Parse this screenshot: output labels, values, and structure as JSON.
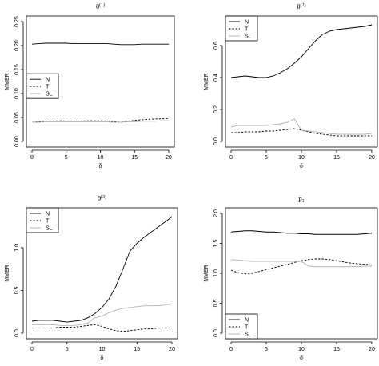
{
  "chart_data": [
    {
      "type": "line",
      "title": "θ",
      "title_sup": "(1)",
      "xlabel": "δ",
      "ylabel": "MMER",
      "xlim": [
        0,
        20
      ],
      "ylim": [
        0,
        0.25
      ],
      "xticks": [
        0,
        5,
        10,
        15,
        20
      ],
      "yticks": [
        0.0,
        0.05,
        0.1,
        0.15,
        0.2,
        0.25
      ],
      "ytick_labels": [
        "0.00",
        "0.05",
        "0.10",
        "0.15",
        "0.20",
        "0.25"
      ],
      "legend_position": "left",
      "x": [
        0,
        1,
        2,
        3,
        4,
        5,
        6,
        7,
        8,
        9,
        10,
        11,
        12,
        13,
        14,
        15,
        16,
        17,
        18,
        19,
        20
      ],
      "series": [
        {
          "name": "N",
          "style": "solid",
          "color": "#000000",
          "values": [
            0.203,
            0.204,
            0.205,
            0.205,
            0.205,
            0.205,
            0.204,
            0.204,
            0.204,
            0.204,
            0.204,
            0.204,
            0.203,
            0.202,
            0.202,
            0.202,
            0.203,
            0.203,
            0.203,
            0.203,
            0.203
          ]
        },
        {
          "name": "T",
          "style": "dashed",
          "color": "#000000",
          "values": [
            0.04,
            0.041,
            0.042,
            0.042,
            0.043,
            0.042,
            0.042,
            0.042,
            0.043,
            0.043,
            0.043,
            0.042,
            0.041,
            0.04,
            0.042,
            0.044,
            0.045,
            0.046,
            0.047,
            0.047,
            0.048
          ]
        },
        {
          "name": "SL",
          "style": "solid",
          "color": "#b3b3b3",
          "values": [
            0.04,
            0.04,
            0.041,
            0.041,
            0.041,
            0.041,
            0.041,
            0.041,
            0.041,
            0.041,
            0.041,
            0.041,
            0.04,
            0.04,
            0.041,
            0.041,
            0.042,
            0.042,
            0.042,
            0.043,
            0.043
          ]
        }
      ]
    },
    {
      "type": "line",
      "title": "θ",
      "title_sup": "(2)",
      "xlabel": "δ",
      "ylabel": "MMER",
      "xlim": [
        0,
        20
      ],
      "ylim": [
        0,
        0.75
      ],
      "xticks": [
        0,
        5,
        10,
        15,
        20
      ],
      "yticks": [
        0.0,
        0.2,
        0.4,
        0.6
      ],
      "ytick_labels": [
        "0.0",
        "0.2",
        "0.4",
        "0.6"
      ],
      "legend_position": "top-left",
      "x": [
        0,
        1,
        2,
        3,
        4,
        5,
        6,
        7,
        8,
        9,
        10,
        11,
        12,
        13,
        14,
        15,
        16,
        17,
        18,
        19,
        20
      ],
      "series": [
        {
          "name": "N",
          "style": "solid",
          "color": "#000000",
          "values": [
            0.4,
            0.405,
            0.41,
            0.405,
            0.4,
            0.4,
            0.41,
            0.43,
            0.455,
            0.49,
            0.53,
            0.58,
            0.63,
            0.67,
            0.69,
            0.7,
            0.705,
            0.71,
            0.715,
            0.72,
            0.73
          ]
        },
        {
          "name": "T",
          "style": "dashed",
          "color": "#000000",
          "values": [
            0.055,
            0.055,
            0.06,
            0.06,
            0.06,
            0.065,
            0.065,
            0.07,
            0.075,
            0.08,
            0.07,
            0.06,
            0.05,
            0.045,
            0.04,
            0.035,
            0.035,
            0.035,
            0.035,
            0.035,
            0.035
          ]
        },
        {
          "name": "SL",
          "style": "solid",
          "color": "#b3b3b3",
          "values": [
            0.09,
            0.1,
            0.1,
            0.1,
            0.1,
            0.1,
            0.105,
            0.11,
            0.12,
            0.14,
            0.07,
            0.065,
            0.06,
            0.055,
            0.05,
            0.045,
            0.045,
            0.045,
            0.045,
            0.045,
            0.05
          ]
        }
      ]
    },
    {
      "type": "line",
      "title": "θ",
      "title_sup": "(3)",
      "xlabel": "δ",
      "ylabel": "MMER",
      "xlim": [
        0,
        20
      ],
      "ylim": [
        0,
        1.4
      ],
      "xticks": [
        0,
        5,
        10,
        15,
        20
      ],
      "yticks": [
        0.0,
        0.5,
        1.0
      ],
      "ytick_labels": [
        "0.0",
        "0.5",
        "1.0"
      ],
      "legend_position": "top-left",
      "x": [
        0,
        1,
        2,
        3,
        4,
        5,
        6,
        7,
        8,
        9,
        10,
        11,
        12,
        13,
        14,
        15,
        16,
        17,
        18,
        19,
        20
      ],
      "series": [
        {
          "name": "N",
          "style": "solid",
          "color": "#000000",
          "values": [
            0.14,
            0.15,
            0.15,
            0.15,
            0.14,
            0.13,
            0.14,
            0.15,
            0.18,
            0.23,
            0.3,
            0.4,
            0.55,
            0.75,
            0.96,
            1.05,
            1.12,
            1.18,
            1.24,
            1.3,
            1.36
          ]
        },
        {
          "name": "T",
          "style": "dashed",
          "color": "#000000",
          "values": [
            0.06,
            0.06,
            0.06,
            0.06,
            0.07,
            0.07,
            0.07,
            0.08,
            0.09,
            0.1,
            0.08,
            0.05,
            0.03,
            0.02,
            0.03,
            0.04,
            0.05,
            0.05,
            0.06,
            0.06,
            0.06
          ]
        },
        {
          "name": "SL",
          "style": "solid",
          "color": "#b3b3b3",
          "values": [
            0.1,
            0.1,
            0.1,
            0.1,
            0.09,
            0.09,
            0.09,
            0.1,
            0.12,
            0.18,
            0.2,
            0.24,
            0.27,
            0.29,
            0.3,
            0.31,
            0.32,
            0.32,
            0.32,
            0.33,
            0.34
          ]
        }
      ]
    },
    {
      "type": "line",
      "title": "p",
      "title_sub": "1",
      "xlabel": "δ",
      "ylabel": "MMER",
      "xlim": [
        0,
        20
      ],
      "ylim": [
        0,
        2.0
      ],
      "xticks": [
        0,
        5,
        10,
        15,
        20
      ],
      "yticks": [
        0.0,
        0.5,
        1.0,
        1.5,
        2.0
      ],
      "ytick_labels": [
        "0.0",
        "0.5",
        "1.0",
        "1.5",
        "2.0"
      ],
      "legend_position": "bottom-left",
      "x": [
        0,
        1,
        2,
        3,
        4,
        5,
        6,
        7,
        8,
        9,
        10,
        11,
        12,
        13,
        14,
        15,
        16,
        17,
        18,
        19,
        20
      ],
      "series": [
        {
          "name": "N",
          "style": "solid",
          "color": "#000000",
          "values": [
            1.69,
            1.7,
            1.71,
            1.71,
            1.7,
            1.69,
            1.69,
            1.68,
            1.67,
            1.67,
            1.66,
            1.66,
            1.65,
            1.65,
            1.65,
            1.65,
            1.65,
            1.65,
            1.65,
            1.66,
            1.67
          ]
        },
        {
          "name": "T",
          "style": "dashed",
          "color": "#000000",
          "values": [
            1.05,
            1.01,
            0.99,
            1.0,
            1.03,
            1.06,
            1.09,
            1.12,
            1.15,
            1.18,
            1.21,
            1.23,
            1.24,
            1.24,
            1.23,
            1.21,
            1.19,
            1.17,
            1.16,
            1.15,
            1.14
          ]
        },
        {
          "name": "SL",
          "style": "solid",
          "color": "#b3b3b3",
          "values": [
            1.23,
            1.22,
            1.21,
            1.2,
            1.2,
            1.2,
            1.2,
            1.2,
            1.2,
            1.2,
            1.2,
            1.12,
            1.11,
            1.11,
            1.11,
            1.11,
            1.11,
            1.11,
            1.11,
            1.12,
            1.12
          ]
        }
      ]
    }
  ]
}
